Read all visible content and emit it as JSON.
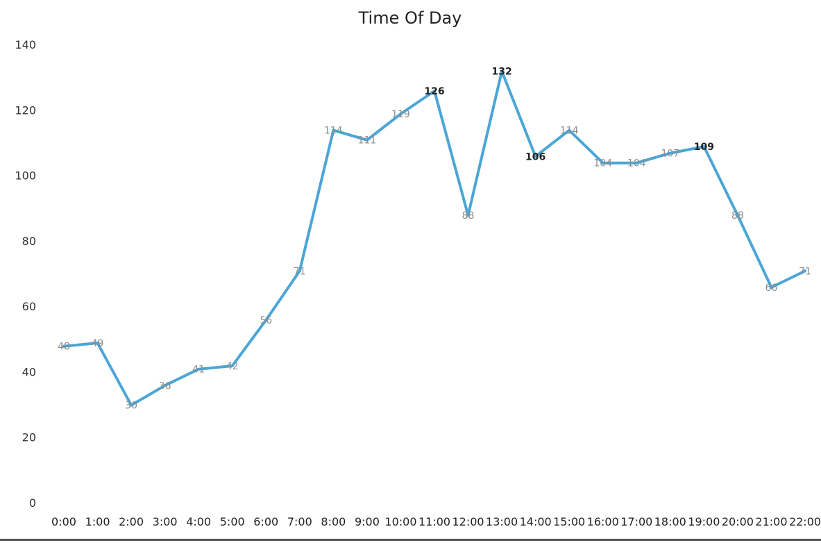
{
  "colors": {
    "series": "#4aa6d6",
    "background": "#ffffff",
    "title": "#222222",
    "label": "#8c8c8c"
  },
  "chart_data": {
    "type": "line",
    "title": "Time Of Day",
    "xlabel": "",
    "ylabel": "",
    "ylim": [
      0,
      140
    ],
    "yticks": [
      "0",
      "20",
      "40",
      "60",
      "80",
      "100",
      "120",
      "140"
    ],
    "grid": false,
    "legend": "none",
    "categories": [
      "0:00",
      "1:00",
      "2:00",
      "3:00",
      "4:00",
      "5:00",
      "6:00",
      "7:00",
      "8:00",
      "9:00",
      "10:00",
      "11:00",
      "12:00",
      "13:00",
      "14:00",
      "15:00",
      "16:00",
      "17:00",
      "18:00",
      "19:00",
      "20:00",
      "21:00",
      "22:00"
    ],
    "series": [
      {
        "values": [
          48,
          49,
          30,
          36,
          41,
          42,
          56,
          71,
          114,
          111,
          119,
          126,
          88,
          132,
          106,
          114,
          104,
          104,
          107,
          109,
          88,
          66,
          71
        ],
        "data_labels": [
          "48",
          "49",
          "30",
          "36",
          "41",
          "42",
          "56",
          "71",
          "114",
          "111",
          "119",
          "126",
          "88",
          "132",
          "106",
          "114",
          "104",
          "104",
          "107",
          "109",
          "88",
          "66",
          "71"
        ]
      }
    ]
  }
}
